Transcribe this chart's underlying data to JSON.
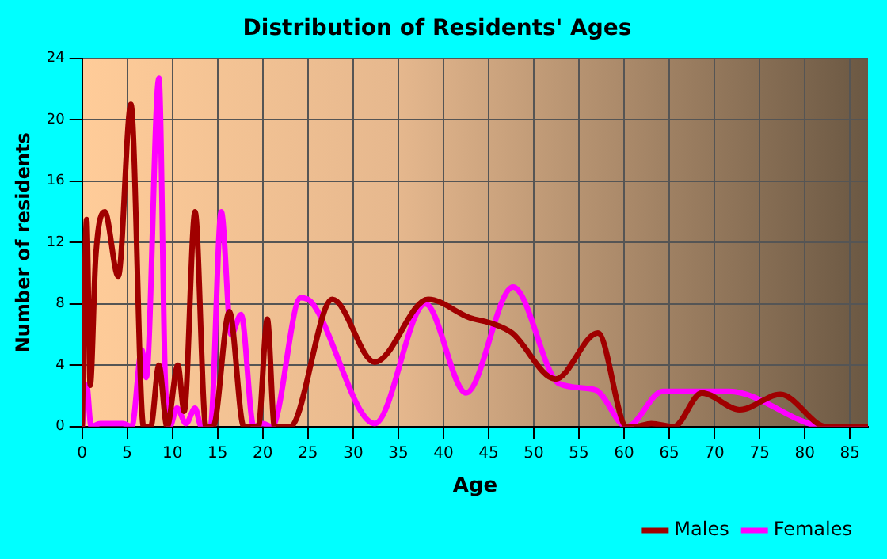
{
  "chart_data": {
    "type": "line",
    "title": "Distribution of Residents' Ages",
    "xlabel": "Age",
    "ylabel": "Number of residents",
    "xlim": [
      0,
      87
    ],
    "xticks": [
      0,
      5,
      10,
      15,
      20,
      25,
      30,
      35,
      40,
      45,
      50,
      55,
      60,
      65,
      70,
      75,
      80,
      85
    ],
    "ylim": [
      0,
      24
    ],
    "yticks": [
      0,
      4,
      8,
      12,
      16,
      20,
      24
    ],
    "grid": true,
    "legend": "bottom right",
    "marker": "none",
    "line_style": "solid",
    "series": [
      {
        "name": "Males",
        "color": "#a00000",
        "x": [
          0,
          0.5,
          0.9,
          1.5,
          2.5,
          4.0,
          5.4,
          6.8,
          7.6,
          8.5,
          9.4,
          10.6,
          11.3,
          12.5,
          13.7,
          14.5,
          16.3,
          17.9,
          19.5,
          20.5,
          21.3,
          23,
          27.7,
          32.4,
          38.3,
          42.9,
          45.5,
          47.6,
          52.4,
          57.1,
          60.3,
          61.2,
          63,
          65.5,
          68.6,
          72.8,
          77.3,
          82.4,
          87
        ],
        "values": [
          0,
          13.5,
          2.7,
          11,
          14,
          9.8,
          21,
          0,
          0,
          4,
          0,
          4,
          1,
          14,
          0,
          0,
          7.5,
          0,
          0,
          7,
          0,
          0,
          8.3,
          4.2,
          8.3,
          7.1,
          6.7,
          6.1,
          3.1,
          6.1,
          0,
          0,
          0.2,
          0,
          2.2,
          1.1,
          2.1,
          0,
          0
        ]
      },
      {
        "name": "Females",
        "color": "#ff00ff",
        "x": [
          0,
          0.5,
          1,
          2,
          4.5,
          5.5,
          6.6,
          7.1,
          8.5,
          9.2,
          9.7,
          10.5,
          11.5,
          12.5,
          13.2,
          14.2,
          15.4,
          16.5,
          17.6,
          19,
          20,
          21,
          24.2,
          25.4,
          32.4,
          38,
          42.5,
          47.7,
          52.8,
          56.8,
          60.3,
          64.3,
          71.6,
          82.4,
          87
        ],
        "values": [
          0,
          2.7,
          0,
          0.2,
          0.2,
          0,
          5,
          3.2,
          22.7,
          3,
          0,
          1.2,
          0.2,
          1.2,
          0,
          0,
          14,
          6,
          7.3,
          0,
          0.2,
          0,
          8.4,
          8.1,
          0.2,
          8,
          2.2,
          9.1,
          2.8,
          2.4,
          0,
          2.3,
          2.3,
          0,
          0
        ]
      }
    ]
  }
}
